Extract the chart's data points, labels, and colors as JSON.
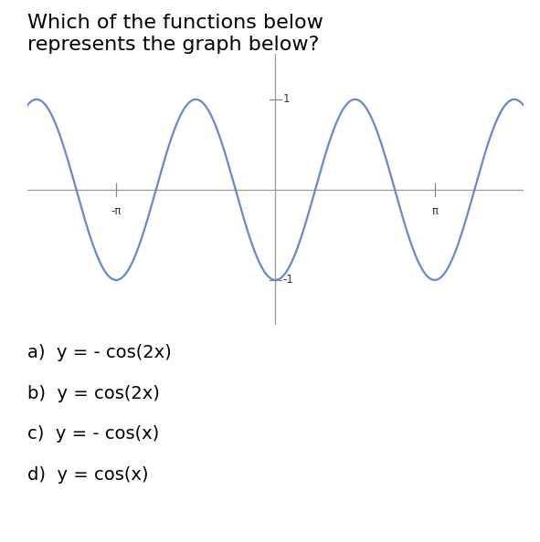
{
  "title_line1": "Which of the functions below",
  "title_line2": "represents the graph below?",
  "title_fontsize": 16,
  "background_color": "#ffffff",
  "curve_color": "#6688cc",
  "curve_linewidth": 1.6,
  "x_min": -4.9,
  "x_max": 4.9,
  "y_min": -1.5,
  "y_max": 1.5,
  "pi": 3.14159265358979,
  "xtick_positions": [
    -3.14159265,
    3.14159265
  ],
  "xtick_labels": [
    "-π",
    "π"
  ],
  "ytick_positions": [
    -1,
    1
  ],
  "ytick_labels": [
    "-1",
    "1"
  ],
  "options": [
    "a)  y = - cos(2x)",
    "b)  y = cos(2x)",
    "c)  y = - cos(x)",
    "d)  y = cos(x)"
  ],
  "options_fontsize": 14
}
